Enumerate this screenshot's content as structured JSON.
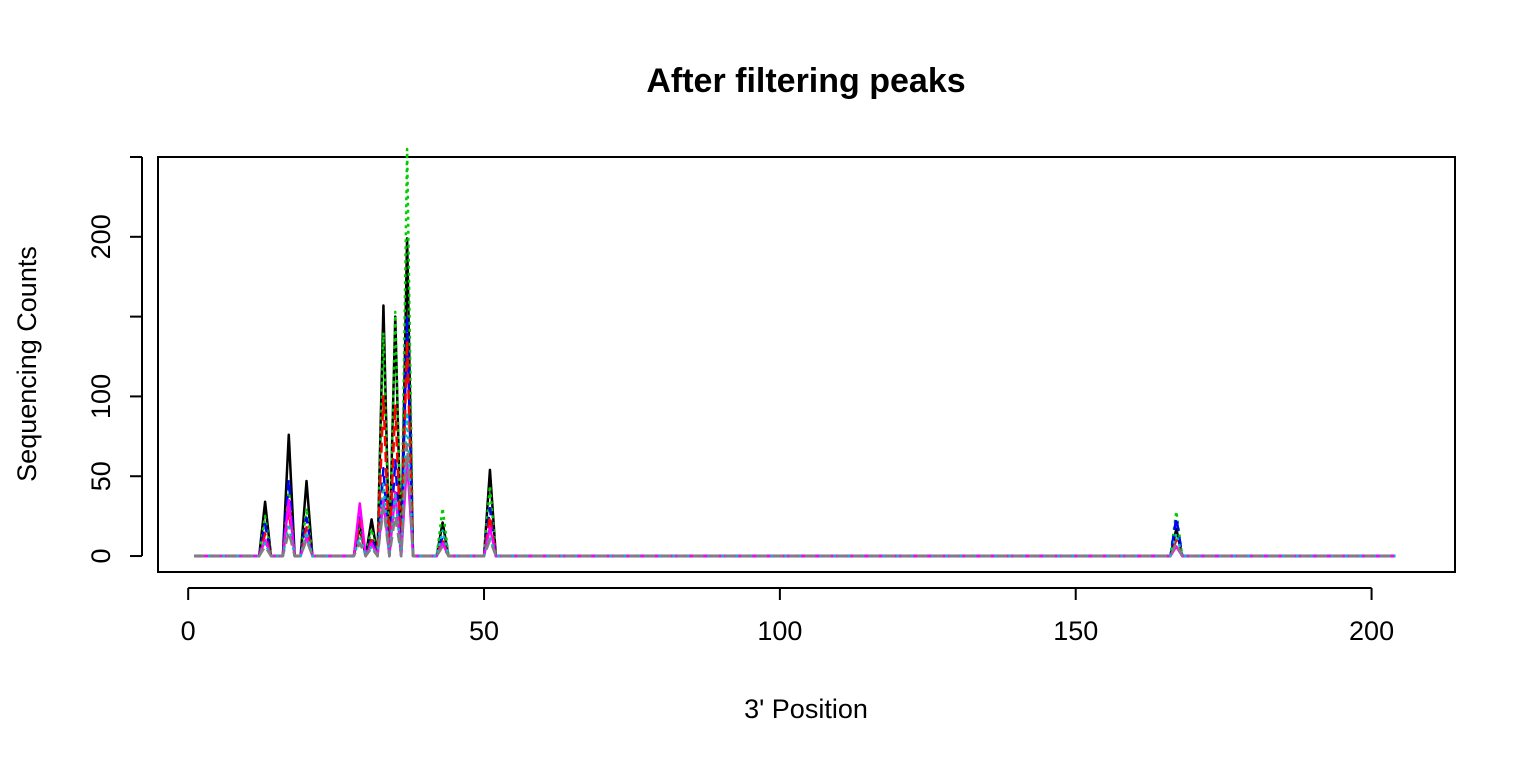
{
  "chart_data": {
    "type": "line",
    "title": "After filtering peaks",
    "xlabel": "3' Position",
    "ylabel": "Sequencing Counts",
    "xlim": [
      -5.1,
      214.1
    ],
    "ylim": [
      -10,
      250
    ],
    "x_ticks": [
      0,
      50,
      100,
      150,
      200
    ],
    "x_tick_labels": [
      "0",
      "50",
      "100",
      "150",
      "200"
    ],
    "y_ticks": [
      0,
      50,
      100,
      150,
      200,
      250
    ],
    "y_tick_labels": [
      "0",
      "50",
      "100",
      "",
      "200",
      ""
    ],
    "x_range": [
      1,
      204
    ],
    "grid": false,
    "legend": "none",
    "series": [
      {
        "color": "#000000",
        "dash": "solid",
        "peaks": [
          [
            13,
            34
          ],
          [
            17,
            76
          ],
          [
            20,
            47
          ],
          [
            29,
            18
          ],
          [
            31,
            23
          ],
          [
            33,
            157
          ],
          [
            35,
            150
          ],
          [
            37,
            199
          ],
          [
            43,
            21
          ],
          [
            51,
            54
          ],
          [
            167,
            17
          ]
        ]
      },
      {
        "color": "#00cd00",
        "dash": "dotted",
        "peaks": [
          [
            13,
            25
          ],
          [
            17,
            42
          ],
          [
            20,
            30
          ],
          [
            29,
            20
          ],
          [
            31,
            17
          ],
          [
            33,
            140
          ],
          [
            35,
            153
          ],
          [
            37,
            255
          ],
          [
            43,
            30
          ],
          [
            51,
            44
          ],
          [
            167,
            28
          ]
        ]
      },
      {
        "color": "#0000ff",
        "dash": "dashed",
        "peaks": [
          [
            13,
            20
          ],
          [
            17,
            48
          ],
          [
            20,
            24
          ],
          [
            29,
            26
          ],
          [
            31,
            12
          ],
          [
            33,
            55
          ],
          [
            35,
            60
          ],
          [
            37,
            150
          ],
          [
            43,
            12
          ],
          [
            51,
            30
          ],
          [
            167,
            24
          ]
        ]
      },
      {
        "color": "#ff0000",
        "dash": "dashed",
        "peaks": [
          [
            13,
            14
          ],
          [
            17,
            28
          ],
          [
            20,
            18
          ],
          [
            29,
            22
          ],
          [
            31,
            10
          ],
          [
            33,
            100
          ],
          [
            35,
            95
          ],
          [
            37,
            135
          ],
          [
            43,
            10
          ],
          [
            51,
            25
          ],
          [
            167,
            10
          ]
        ]
      },
      {
        "color": "#ff00ff",
        "dash": "solid",
        "peaks": [
          [
            13,
            10
          ],
          [
            17,
            35
          ],
          [
            20,
            12
          ],
          [
            29,
            33
          ],
          [
            31,
            8
          ],
          [
            33,
            35
          ],
          [
            35,
            40
          ],
          [
            37,
            60
          ],
          [
            43,
            8
          ],
          [
            51,
            18
          ],
          [
            167,
            6
          ]
        ]
      },
      {
        "color": "#00bfbf",
        "dash": "dotted",
        "peaks": [
          [
            13,
            8
          ],
          [
            17,
            20
          ],
          [
            20,
            15
          ],
          [
            29,
            12
          ],
          [
            31,
            6
          ],
          [
            33,
            45
          ],
          [
            35,
            38
          ],
          [
            37,
            90
          ],
          [
            43,
            16
          ],
          [
            51,
            12
          ],
          [
            167,
            14
          ]
        ]
      },
      {
        "color": "#7f7f7f",
        "dash": "dashed",
        "peaks": [
          [
            13,
            6
          ],
          [
            17,
            15
          ],
          [
            20,
            10
          ],
          [
            29,
            8
          ],
          [
            31,
            5
          ],
          [
            33,
            30
          ],
          [
            35,
            25
          ],
          [
            37,
            70
          ],
          [
            43,
            6
          ],
          [
            51,
            10
          ],
          [
            167,
            8
          ]
        ]
      }
    ]
  }
}
